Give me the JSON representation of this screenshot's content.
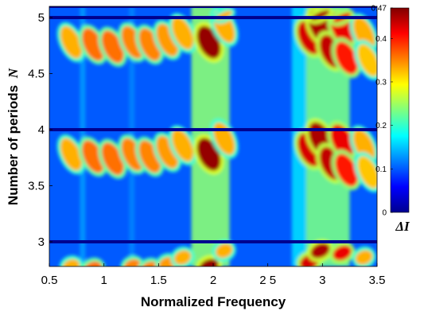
{
  "chart_data": {
    "type": "heatmap",
    "title": "",
    "xlabel": "Normalized Frequency",
    "ylabel": "Number of periods",
    "ylabel_symbol": "N",
    "xlim": [
      0.5,
      3.5
    ],
    "ylim": [
      2.78,
      5.1
    ],
    "x_ticks": [
      {
        "value": 0.5,
        "label": "0.5"
      },
      {
        "value": 1.0,
        "label": "1"
      },
      {
        "value": 1.5,
        "label": "1.5"
      },
      {
        "value": 2.0,
        "label": "2"
      },
      {
        "value": 2.5,
        "label": "2 5"
      },
      {
        "value": 3.0,
        "label": "3"
      },
      {
        "value": 3.5,
        "label": "3.5"
      }
    ],
    "y_ticks": [
      {
        "value": 3.0,
        "label": "3"
      },
      {
        "value": 3.5,
        "label": "3.5"
      },
      {
        "value": 4.0,
        "label": "4"
      },
      {
        "value": 4.5,
        "label": "4.5"
      },
      {
        "value": 5.0,
        "label": "5"
      }
    ],
    "colorbar": {
      "title": "ΔI",
      "range": [
        0,
        0.47
      ],
      "ticks": [
        {
          "value": 0,
          "label": "0"
        },
        {
          "value": 0.1,
          "label": "0.1"
        },
        {
          "value": 0.2,
          "label": "0.2"
        },
        {
          "value": 0.3,
          "label": "0.3"
        },
        {
          "value": 0.4,
          "label": "0.4"
        },
        {
          "value": 0.47,
          "label": "0.47"
        }
      ],
      "colormap": "jet"
    },
    "period_bands": [
      {
        "y_bottom": 2.78,
        "y_top": 3.0
      },
      {
        "y_bottom": 3.0,
        "y_top": 4.0
      },
      {
        "y_bottom": 4.0,
        "y_top": 5.0
      },
      {
        "y_bottom": 5.0,
        "y_top": 5.1
      }
    ],
    "vertical_bands": [
      {
        "x_from": 1.8,
        "x_to": 2.15,
        "value": 0.24
      },
      {
        "x_from": 2.72,
        "x_to": 2.85,
        "value": 0.16
      },
      {
        "x_from": 2.85,
        "x_to": 3.25,
        "value": 0.23
      },
      {
        "x_from": 0.78,
        "x_to": 0.83,
        "value": 0.13
      },
      {
        "x_from": 1.23,
        "x_to": 1.28,
        "value": 0.12
      }
    ],
    "resonance_lobes": [
      {
        "x": 0.7,
        "dy": 0.22,
        "value": 0.33
      },
      {
        "x": 0.9,
        "dy": 0.24,
        "value": 0.36
      },
      {
        "x": 1.08,
        "dy": 0.26,
        "value": 0.36
      },
      {
        "x": 1.26,
        "dy": 0.22,
        "value": 0.35
      },
      {
        "x": 1.42,
        "dy": 0.24,
        "value": 0.35
      },
      {
        "x": 1.58,
        "dy": 0.2,
        "value": 0.34
      },
      {
        "x": 1.72,
        "dy": 0.14,
        "value": 0.33
      },
      {
        "x": 1.96,
        "dy": 0.22,
        "value": 0.46
      },
      {
        "x": 2.1,
        "dy": 0.08,
        "value": 0.33
      },
      {
        "x": 2.88,
        "dy": 0.18,
        "value": 0.43
      },
      {
        "x": 2.98,
        "dy": 0.08,
        "value": 0.45
      },
      {
        "x": 3.08,
        "dy": 0.3,
        "value": 0.44
      },
      {
        "x": 3.18,
        "dy": 0.1,
        "value": 0.42
      },
      {
        "x": 3.22,
        "dy": 0.36,
        "value": 0.4
      },
      {
        "x": 3.38,
        "dy": 0.14,
        "value": 0.33
      },
      {
        "x": 3.42,
        "dy": 0.38,
        "value": 0.32
      }
    ],
    "background_value": 0.1
  }
}
